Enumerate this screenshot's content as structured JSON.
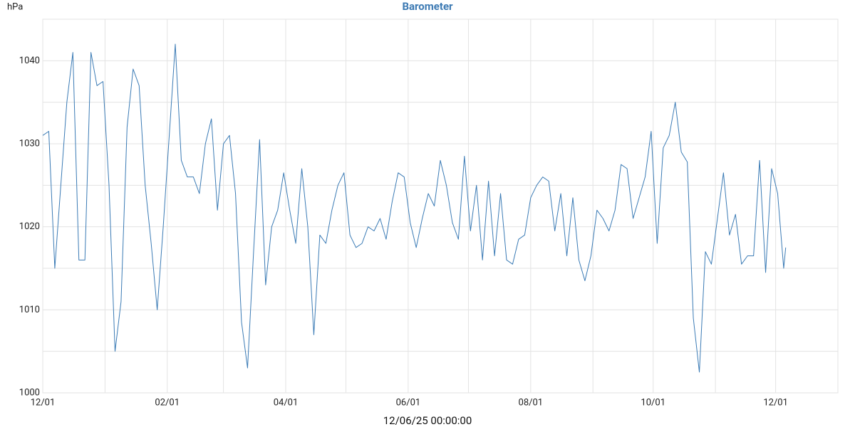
{
  "chart_data": {
    "type": "line",
    "title": "Barometer",
    "ylabel": "hPa",
    "footer_label": "12/06/25 00:00:00",
    "color": "#3b7bb5",
    "grid": true,
    "ylim": [
      1000,
      1045
    ],
    "yticks": [
      1000,
      1010,
      1020,
      1030,
      1040
    ],
    "ygrid": [
      1005,
      1015,
      1025,
      1035
    ],
    "xlim": [
      "2024-12-01",
      "2026-01-01"
    ],
    "xticks": [
      {
        "value": "2024-12-01",
        "label": "12/01"
      },
      {
        "value": "2025-02-01",
        "label": "02/01"
      },
      {
        "value": "2025-04-01",
        "label": "04/01"
      },
      {
        "value": "2025-06-01",
        "label": "06/01"
      },
      {
        "value": "2025-08-01",
        "label": "08/01"
      },
      {
        "value": "2025-10-01",
        "label": "10/01"
      },
      {
        "value": "2025-12-01",
        "label": "12/01"
      }
    ],
    "xgrid": [
      "2025-01-01",
      "2025-03-01",
      "2025-05-01",
      "2025-07-01",
      "2025-09-01",
      "2025-11-01"
    ],
    "x": [
      "2024-12-01",
      "2024-12-04",
      "2024-12-07",
      "2024-12-10",
      "2024-12-13",
      "2024-12-16",
      "2024-12-19",
      "2024-12-22",
      "2024-12-25",
      "2024-12-28",
      "2024-12-31",
      "2025-01-03",
      "2025-01-06",
      "2025-01-09",
      "2025-01-12",
      "2025-01-15",
      "2025-01-18",
      "2025-01-21",
      "2025-01-24",
      "2025-01-27",
      "2025-01-30",
      "2025-02-02",
      "2025-02-05",
      "2025-02-08",
      "2025-02-11",
      "2025-02-14",
      "2025-02-17",
      "2025-02-20",
      "2025-02-23",
      "2025-02-26",
      "2025-03-01",
      "2025-03-04",
      "2025-03-07",
      "2025-03-10",
      "2025-03-13",
      "2025-03-16",
      "2025-03-19",
      "2025-03-22",
      "2025-03-25",
      "2025-03-28",
      "2025-03-31",
      "2025-04-03",
      "2025-04-06",
      "2025-04-09",
      "2025-04-12",
      "2025-04-15",
      "2025-04-18",
      "2025-04-21",
      "2025-04-24",
      "2025-04-27",
      "2025-04-30",
      "2025-05-03",
      "2025-05-06",
      "2025-05-09",
      "2025-05-12",
      "2025-05-15",
      "2025-05-18",
      "2025-05-21",
      "2025-05-24",
      "2025-05-27",
      "2025-05-30",
      "2025-06-02",
      "2025-06-05",
      "2025-06-08",
      "2025-06-11",
      "2025-06-14",
      "2025-06-17",
      "2025-06-20",
      "2025-06-23",
      "2025-06-26",
      "2025-06-29",
      "2025-07-02",
      "2025-07-05",
      "2025-07-08",
      "2025-07-11",
      "2025-07-14",
      "2025-07-17",
      "2025-07-20",
      "2025-07-23",
      "2025-07-26",
      "2025-07-29",
      "2025-08-01",
      "2025-08-04",
      "2025-08-07",
      "2025-08-10",
      "2025-08-13",
      "2025-08-16",
      "2025-08-19",
      "2025-08-22",
      "2025-08-25",
      "2025-08-28",
      "2025-08-31",
      "2025-09-03",
      "2025-09-06",
      "2025-09-09",
      "2025-09-12",
      "2025-09-15",
      "2025-09-18",
      "2025-09-21",
      "2025-09-24",
      "2025-09-27",
      "2025-09-30",
      "2025-10-03",
      "2025-10-06",
      "2025-10-09",
      "2025-10-12",
      "2025-10-15",
      "2025-10-18",
      "2025-10-21",
      "2025-10-24",
      "2025-10-27",
      "2025-10-30",
      "2025-11-02",
      "2025-11-05",
      "2025-11-08",
      "2025-11-11",
      "2025-11-14",
      "2025-11-17",
      "2025-11-20",
      "2025-11-23",
      "2025-11-26",
      "2025-11-29",
      "2025-12-02",
      "2025-12-05",
      "2025-12-06"
    ],
    "values": [
      1031,
      1031.5,
      1015,
      1025,
      1035,
      1041,
      1016,
      1016,
      1041,
      1037,
      1037.5,
      1025,
      1005,
      1011,
      1032,
      1039,
      1037,
      1025,
      1018,
      1010,
      1020,
      1031,
      1042,
      1028,
      1026,
      1026,
      1024,
      1030,
      1033,
      1022,
      1030,
      1031,
      1024,
      1008.5,
      1003,
      1017,
      1030.5,
      1013,
      1020,
      1022,
      1026.5,
      1022,
      1018,
      1027,
      1020,
      1007,
      1019,
      1018,
      1022,
      1025,
      1026.5,
      1019,
      1017.5,
      1018,
      1020,
      1019.5,
      1021,
      1018.5,
      1023,
      1026.5,
      1026,
      1020.5,
      1017.5,
      1021,
      1024,
      1022.5,
      1028,
      1025,
      1020.5,
      1018.5,
      1028.5,
      1019.5,
      1025,
      1016,
      1025.5,
      1016.5,
      1024,
      1016,
      1015.5,
      1018.5,
      1019,
      1023.5,
      1025,
      1026,
      1025.5,
      1019.5,
      1024,
      1016.5,
      1023.5,
      1016,
      1013.5,
      1016.5,
      1022,
      1021,
      1019.5,
      1022,
      1027.5,
      1027,
      1021,
      1023.5,
      1026,
      1031.5,
      1018,
      1029.5,
      1031,
      1035,
      1029,
      1027.8,
      1009,
      1002.5,
      1017,
      1015.5,
      1021,
      1026.5,
      1019,
      1021.5,
      1015.5,
      1016.5,
      1016.5,
      1028,
      1014.5,
      1027,
      1024,
      1015,
      1017.5
    ]
  }
}
